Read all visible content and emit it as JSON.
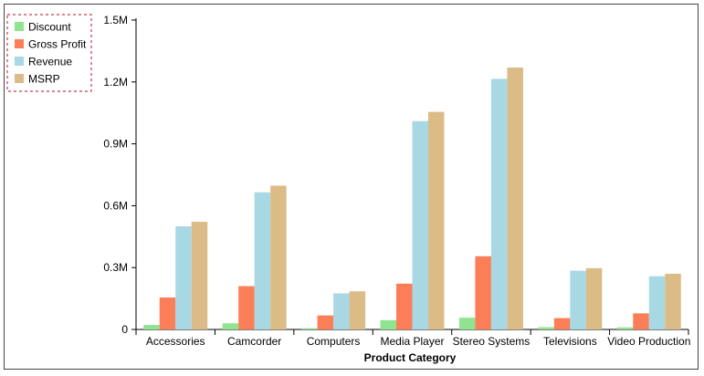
{
  "chart_data": {
    "type": "bar",
    "title": "",
    "xlabel": "Product Category",
    "ylabel": "",
    "ylim": [
      0,
      1500000
    ],
    "y_ticks": [
      0,
      300000,
      600000,
      900000,
      1200000,
      1500000
    ],
    "y_tick_labels": [
      "0",
      "0.3M",
      "0.6M",
      "0.9M",
      "1.2M",
      "1.5M"
    ],
    "categories": [
      "Accessories",
      "Camcorder",
      "Computers",
      "Media Player",
      "Stereo Systems",
      "Televisions",
      "Video Production"
    ],
    "series": [
      {
        "name": "Discount",
        "color": "#90e48f",
        "values": [
          22000,
          30000,
          6000,
          45000,
          57000,
          11000,
          10000
        ]
      },
      {
        "name": "Gross Profit",
        "color": "#fb7e58",
        "values": [
          155000,
          210000,
          68000,
          222000,
          355000,
          55000,
          78000
        ]
      },
      {
        "name": "Revenue",
        "color": "#a9d8e5",
        "values": [
          500000,
          665000,
          175000,
          1010000,
          1215000,
          285000,
          258000
        ]
      },
      {
        "name": "MSRP",
        "color": "#dcbc86",
        "values": [
          522000,
          697000,
          185000,
          1055000,
          1270000,
          297000,
          270000
        ]
      }
    ],
    "grid": false,
    "legend_position": "top-left"
  }
}
